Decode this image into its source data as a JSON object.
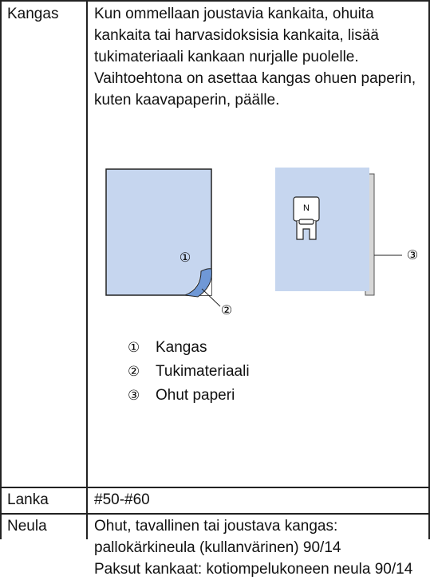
{
  "table": {
    "rows": [
      {
        "label": "Kangas",
        "text": "Kun ommellaan joustavia kankaita, ohuita kankaita tai harvasidoksisia kankaita, lisää tukimateriaali kankaan nurjalle puolelle. Vaihtoehtona on asettaa kangas ohuen paperin, kuten kaavapaperin, päälle.",
        "figure": {
          "callouts": [
            "①",
            "②",
            "③"
          ],
          "foot_letter": "N"
        },
        "legend": [
          {
            "marker": "①",
            "label": "Kangas"
          },
          {
            "marker": "②",
            "label": "Tukimateriaali"
          },
          {
            "marker": "③",
            "label": "Ohut paperi"
          }
        ]
      },
      {
        "label": "Lanka",
        "text": "#50-#60"
      },
      {
        "label": "Neula",
        "paragraphs": [
          "Ohut, tavallinen tai joustava kangas: pallokärkineula (kullanvärinen) 90/14",
          "Paksut kankaat: kotiompelukoneen neula 90/14"
        ]
      }
    ]
  }
}
